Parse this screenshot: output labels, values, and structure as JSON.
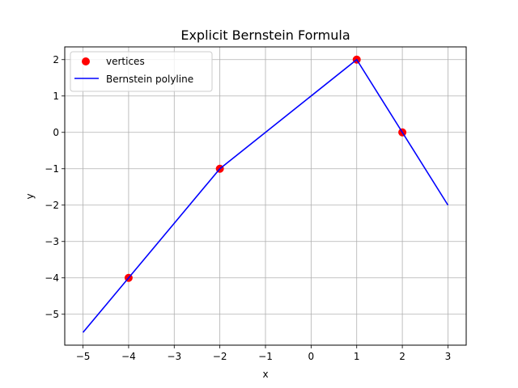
{
  "chart_data": {
    "type": "line",
    "title": "Explicit Bernstein Formula",
    "xlabel": "x",
    "ylabel": "y",
    "xlim": [
      -5.4,
      3.4
    ],
    "ylim": [
      -5.85,
      2.35
    ],
    "xticks": [
      -5,
      -4,
      -3,
      -2,
      -1,
      0,
      1,
      2,
      3
    ],
    "yticks": [
      -5,
      -4,
      -3,
      -2,
      -1,
      0,
      1,
      2
    ],
    "xtick_labels": [
      "−5",
      "−4",
      "−3",
      "−2",
      "−1",
      "0",
      "1",
      "2",
      "3"
    ],
    "ytick_labels": [
      "−5",
      "−4",
      "−3",
      "−2",
      "−1",
      "0",
      "1",
      "2"
    ],
    "grid": true,
    "legend_position": "top-left",
    "series": [
      {
        "name": "vertices",
        "kind": "scatter",
        "color": "#ff0000",
        "points": [
          [
            -4,
            -4
          ],
          [
            -2,
            -1
          ],
          [
            1,
            2
          ],
          [
            2,
            0
          ]
        ]
      },
      {
        "name": "Bernstein polyline",
        "kind": "line",
        "color": "#0000ff",
        "points": [
          [
            -5,
            -5.5
          ],
          [
            -4,
            -4
          ],
          [
            -2,
            -1
          ],
          [
            1,
            2
          ],
          [
            2,
            0
          ],
          [
            3,
            -2
          ]
        ]
      }
    ]
  }
}
